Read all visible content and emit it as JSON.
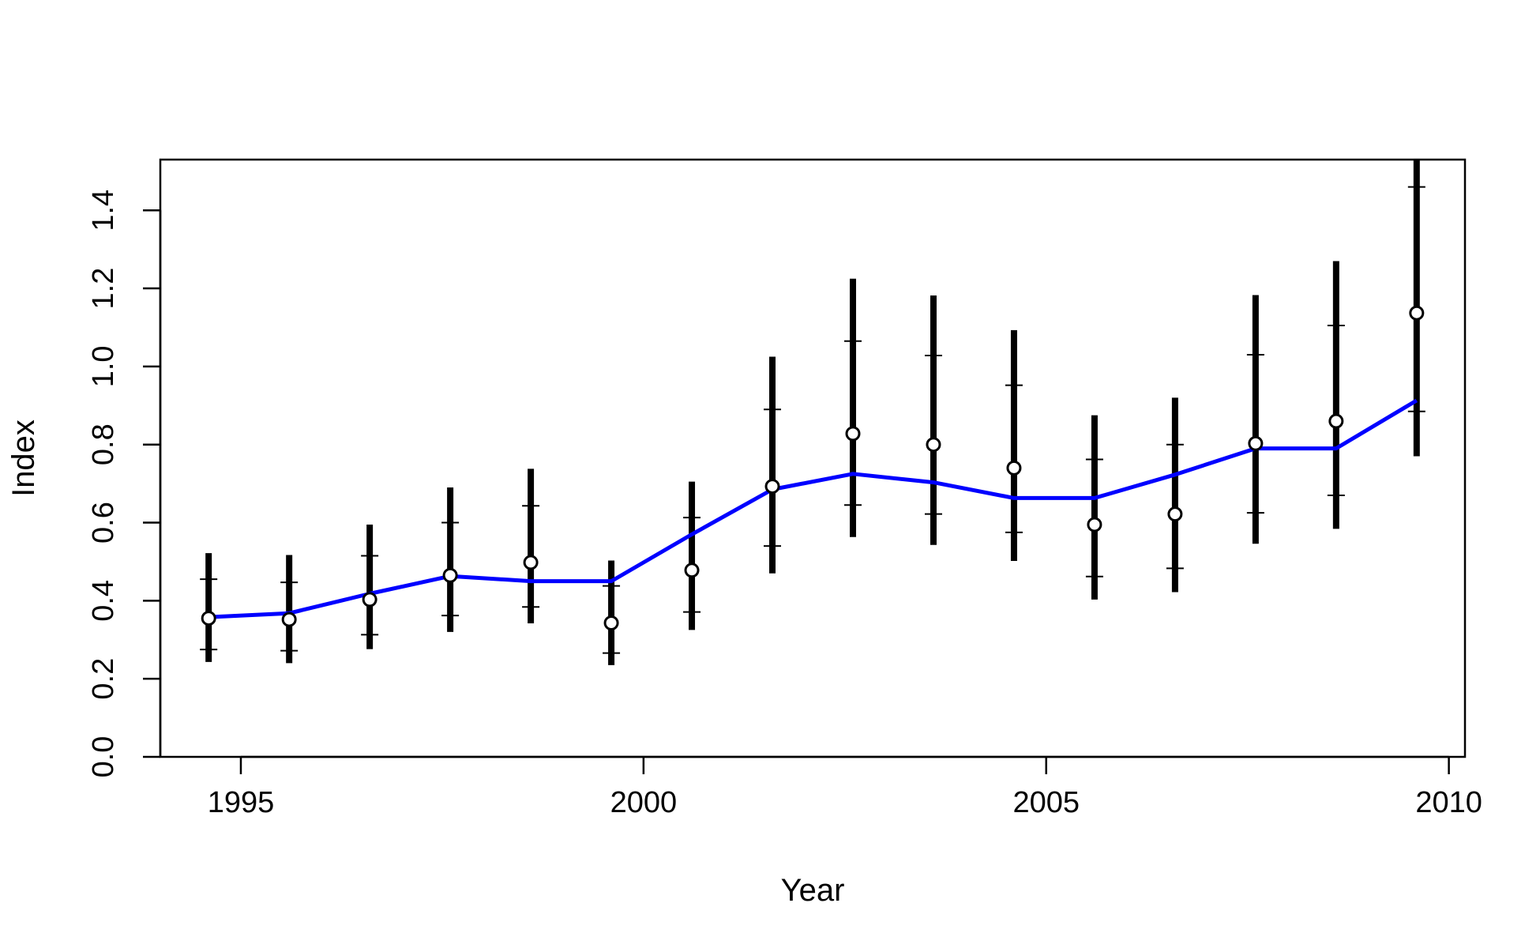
{
  "chart_data": {
    "type": "scatter",
    "title": "",
    "xlabel": "Year",
    "ylabel": "Index",
    "xlim": [
      1994.0,
      2010.2
    ],
    "ylim": [
      0.0,
      1.53
    ],
    "x_ticks": [
      1995,
      2000,
      2005,
      2010
    ],
    "y_ticks": [
      0.0,
      0.2,
      0.4,
      0.6,
      0.8,
      1.0,
      1.2,
      1.4
    ],
    "x_tick_labels": [
      "1995",
      "2000",
      "2005",
      "2010"
    ],
    "y_tick_labels": [
      "0.0",
      "0.2",
      "0.4",
      "0.6",
      "0.8",
      "1.0",
      "1.2",
      "1.4"
    ],
    "grid": false,
    "legend": "none",
    "colors": {
      "observed": "#000000",
      "fitted": "#0000ff"
    },
    "series": [
      {
        "kind": "points-with-intervals",
        "x": [
          1994.6,
          1995.6,
          1996.6,
          1997.6,
          1998.6,
          1999.6,
          2000.6,
          2001.6,
          2002.6,
          2003.6,
          2004.6,
          2005.6,
          2006.6,
          2007.6,
          2008.6,
          2009.6
        ],
        "y": [
          0.355,
          0.352,
          0.403,
          0.465,
          0.498,
          0.343,
          0.478,
          0.693,
          0.828,
          0.8,
          0.74,
          0.595,
          0.622,
          0.803,
          0.86,
          1.137
        ],
        "inner_lower": [
          0.275,
          0.272,
          0.313,
          0.362,
          0.384,
          0.266,
          0.371,
          0.54,
          0.645,
          0.622,
          0.575,
          0.462,
          0.483,
          0.625,
          0.67,
          0.885
        ],
        "inner_upper": [
          0.455,
          0.447,
          0.515,
          0.6,
          0.643,
          0.438,
          0.613,
          0.89,
          1.065,
          1.028,
          0.952,
          0.762,
          0.8,
          1.03,
          1.105,
          1.46
        ],
        "outer_lower": [
          0.243,
          0.24,
          0.276,
          0.32,
          0.342,
          0.235,
          0.325,
          0.47,
          0.563,
          0.543,
          0.502,
          0.403,
          0.422,
          0.546,
          0.584,
          0.77
        ],
        "outer_upper": [
          0.522,
          0.517,
          0.595,
          0.69,
          0.738,
          0.503,
          0.705,
          1.025,
          1.225,
          1.182,
          1.093,
          0.875,
          0.92,
          1.183,
          1.27,
          1.53
        ]
      },
      {
        "kind": "line",
        "x": [
          1994.6,
          1995.6,
          1996.6,
          1997.6,
          1998.6,
          1999.6,
          2000.6,
          2001.6,
          2002.6,
          2003.6,
          2004.6,
          2005.6,
          2006.6,
          2007.6,
          2008.6,
          2009.6
        ],
        "y": [
          0.358,
          0.368,
          0.418,
          0.463,
          0.45,
          0.45,
          0.57,
          0.685,
          0.725,
          0.703,
          0.663,
          0.663,
          0.723,
          0.79,
          0.79,
          0.913
        ]
      }
    ]
  }
}
